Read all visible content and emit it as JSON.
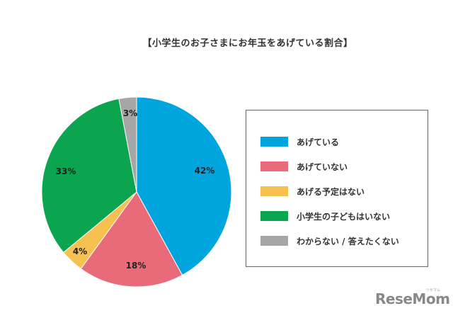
{
  "chart_data": {
    "type": "pie",
    "title": "【小学生のお子さまにお年玉をあげている割合】",
    "categories": [
      "あげている",
      "あげていない",
      "あげる予定はない",
      "小学生の子どもはいない",
      "わからない / 答えたくない"
    ],
    "values": [
      42,
      18,
      4,
      33,
      3
    ],
    "labels": [
      "42%",
      "18%",
      "4%",
      "33%",
      "3%"
    ],
    "colors": [
      "#00A5DE",
      "#E96B7A",
      "#F7C150",
      "#0BA550",
      "#A6A6A6"
    ],
    "start_angle": "12 o'clock, clockwise",
    "legend_position": "right"
  },
  "title": "【小学生のお子さまにお年玉をあげている割合】",
  "legend": {
    "items": [
      {
        "label": "あげている",
        "color": "#00A5DE"
      },
      {
        "label": "あげていない",
        "color": "#E96B7A"
      },
      {
        "label": "あげる予定はない",
        "color": "#F7C150"
      },
      {
        "label": "小学生の子どもはいない",
        "color": "#0BA550"
      },
      {
        "label": "わからない / 答えたくない",
        "color": "#A6A6A6"
      }
    ]
  },
  "slice_labels": [
    "42%",
    "18%",
    "4%",
    "33%",
    "3%"
  ],
  "watermark": {
    "text": "ReseMom",
    "sub": "リセマム"
  }
}
